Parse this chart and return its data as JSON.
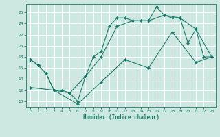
{
  "title": "",
  "xlabel": "Humidex (Indice chaleur)",
  "bg_color": "#cce8e0",
  "grid_color": "#ffffff",
  "line_color": "#1a7a6a",
  "xlim": [
    -0.5,
    23.5
  ],
  "ylim": [
    9,
    27.5
  ],
  "yticks": [
    10,
    12,
    14,
    16,
    18,
    20,
    22,
    24,
    26
  ],
  "xticks": [
    0,
    1,
    2,
    3,
    4,
    5,
    6,
    7,
    8,
    9,
    10,
    11,
    12,
    13,
    14,
    15,
    16,
    17,
    18,
    19,
    20,
    21,
    22,
    23
  ],
  "line1_x": [
    0,
    1,
    2,
    3,
    4,
    5,
    6,
    7,
    8,
    9,
    10,
    11,
    12,
    13,
    14,
    15,
    16,
    17,
    18,
    19,
    20,
    21,
    22,
    23
  ],
  "line1_y": [
    17.5,
    16.5,
    15.0,
    12.0,
    12.0,
    11.5,
    10.0,
    14.5,
    18.0,
    19.0,
    23.5,
    25.0,
    25.0,
    24.5,
    24.5,
    24.5,
    27.0,
    25.5,
    25.0,
    25.0,
    20.5,
    23.0,
    18.0,
    18.0
  ],
  "line2_x": [
    0,
    1,
    2,
    3,
    5,
    7,
    9,
    11,
    13,
    15,
    17,
    19,
    21,
    23
  ],
  "line2_y": [
    17.5,
    16.5,
    15.0,
    12.0,
    11.5,
    14.5,
    18.0,
    23.5,
    24.5,
    24.5,
    25.5,
    25.0,
    23.0,
    18.0
  ],
  "line3_x": [
    0,
    3,
    6,
    9,
    12,
    15,
    18,
    21,
    23
  ],
  "line3_y": [
    12.5,
    12.0,
    9.5,
    13.5,
    17.5,
    16.0,
    22.5,
    17.0,
    18.0
  ]
}
